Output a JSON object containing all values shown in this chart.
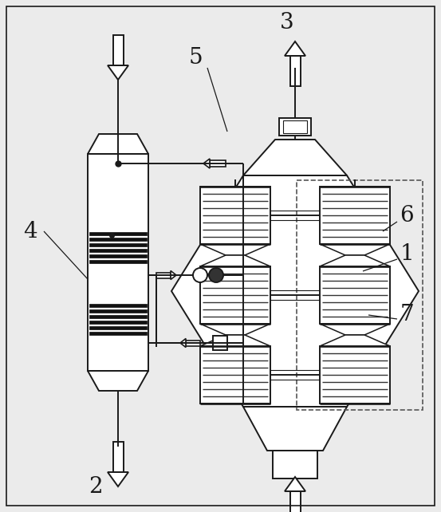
{
  "bg_color": "#ebebeb",
  "line_color": "#1a1a1a",
  "fig_w": 5.53,
  "fig_h": 6.42,
  "dpi": 100
}
